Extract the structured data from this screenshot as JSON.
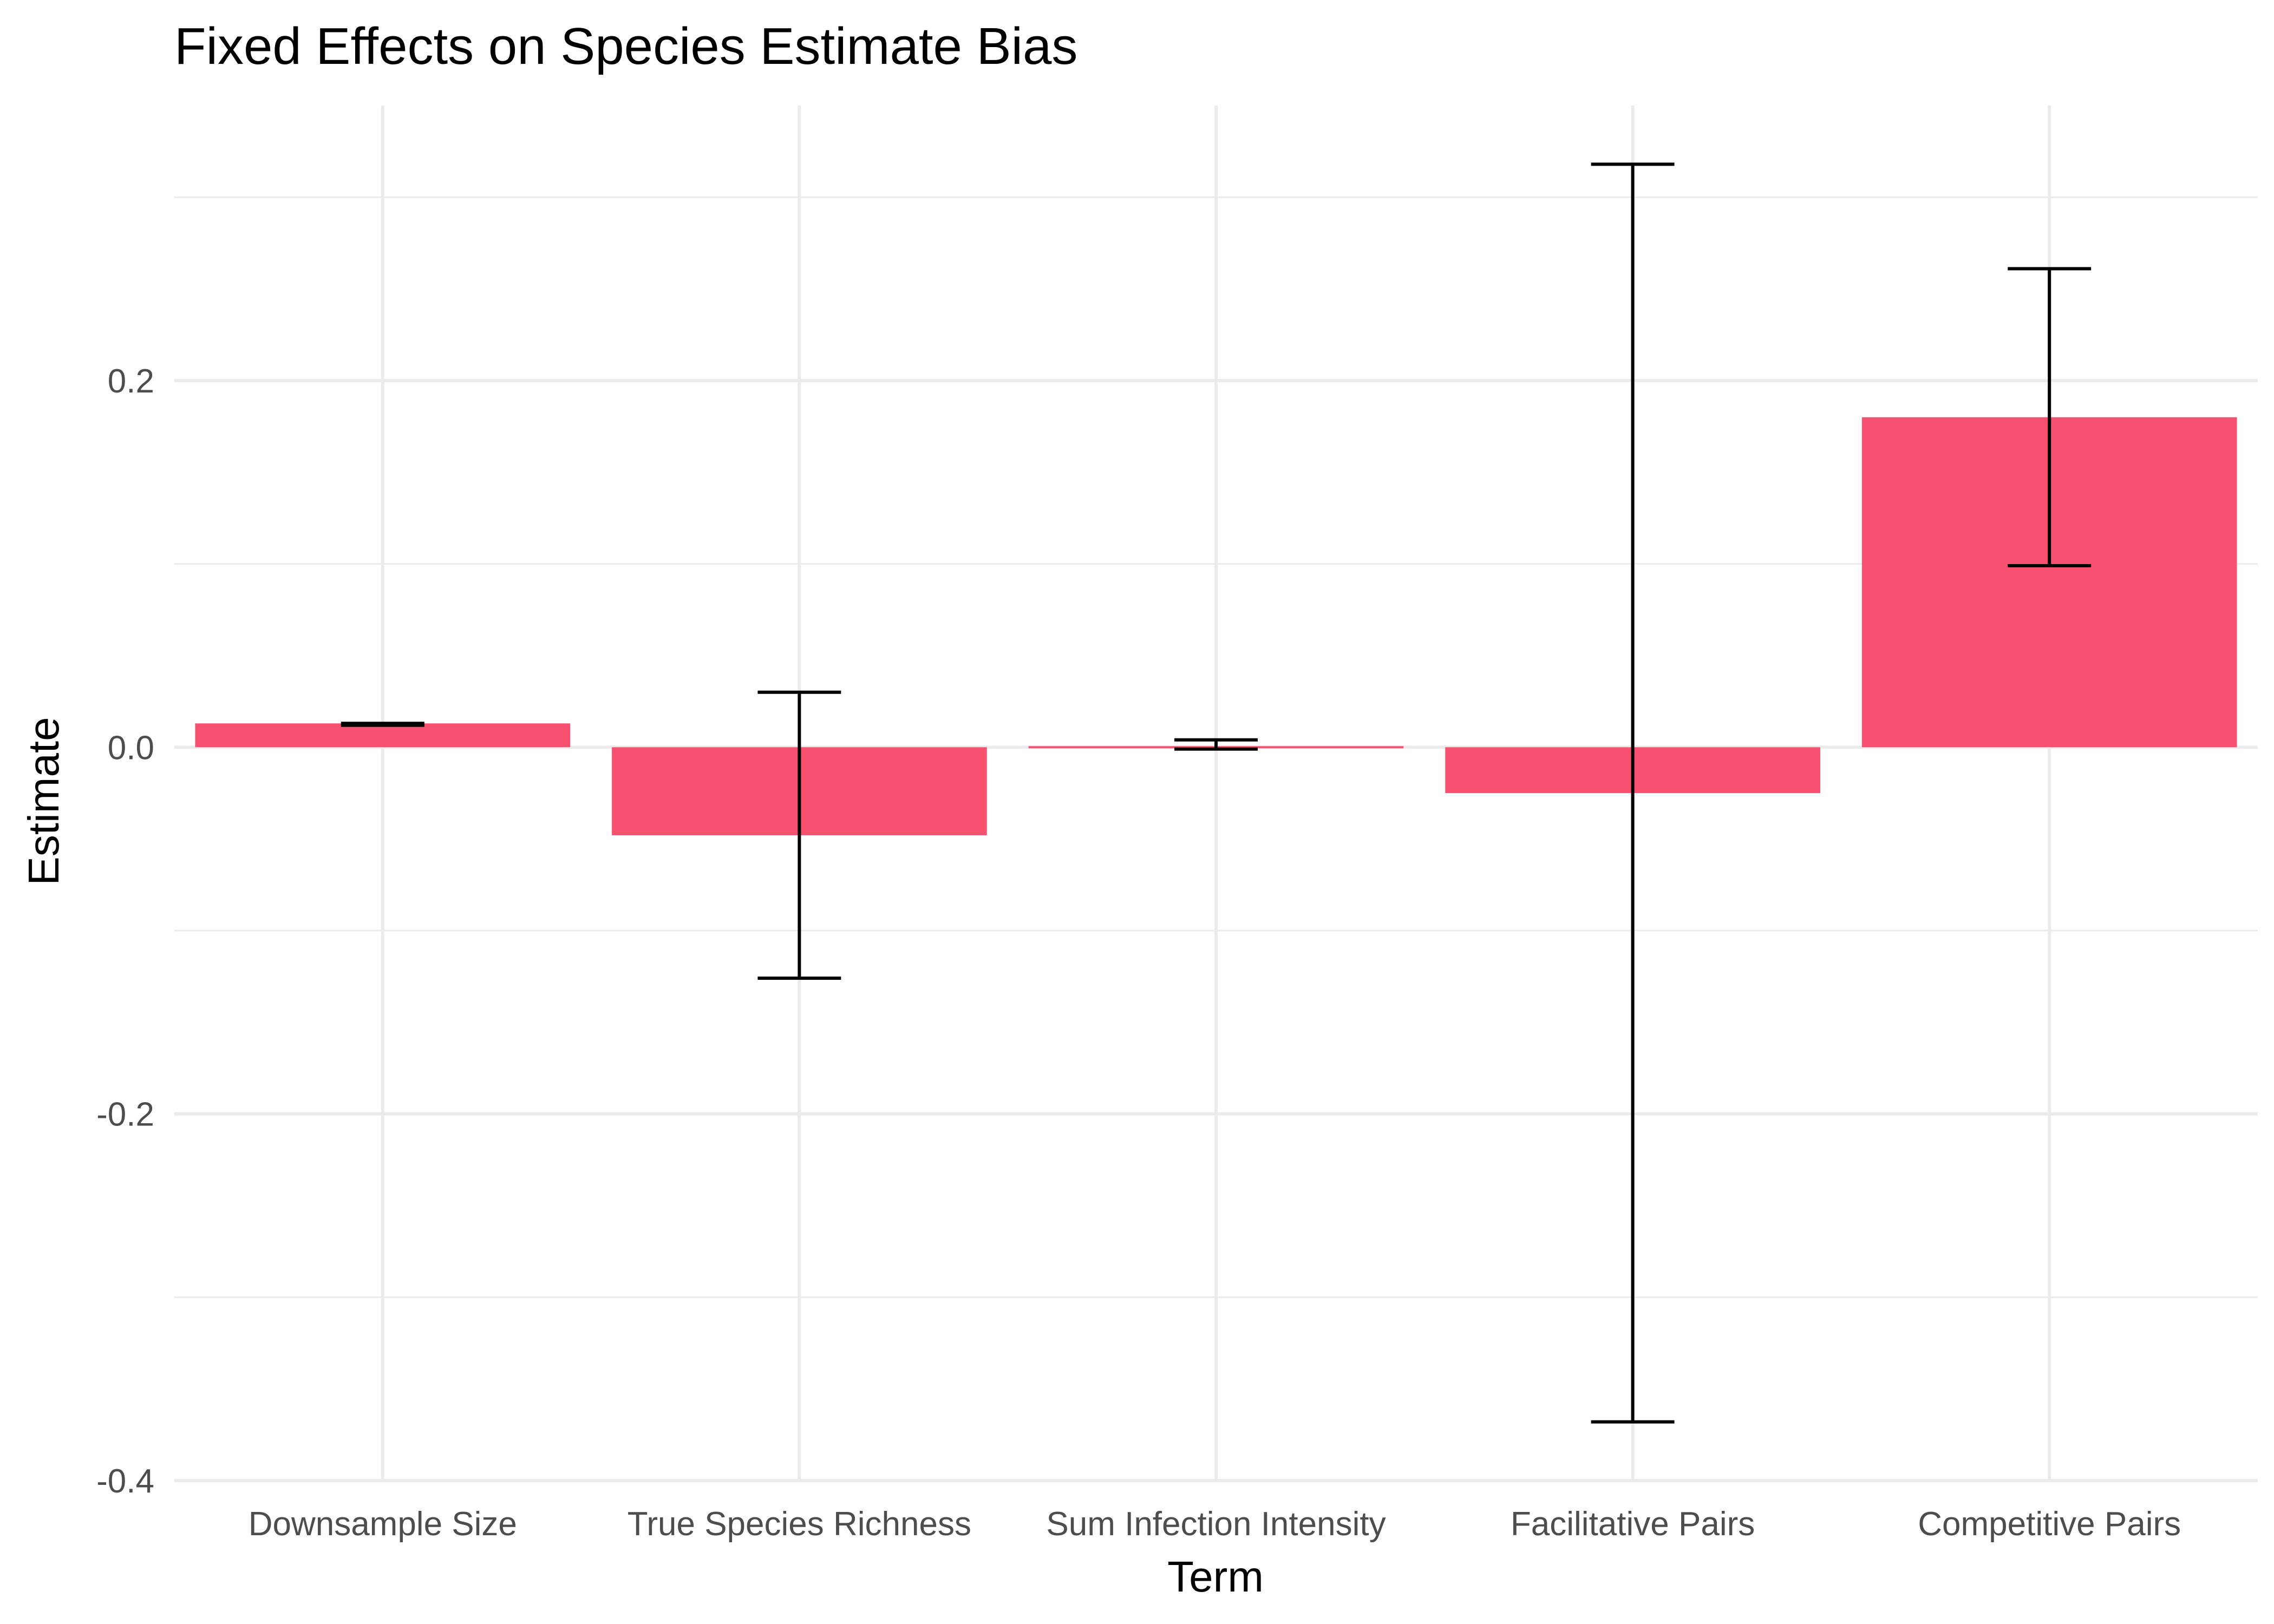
{
  "chart_data": {
    "type": "bar",
    "title": "Fixed Effects on Species Estimate Bias",
    "xlabel": "Term",
    "ylabel": "Estimate",
    "categories": [
      "Downsample Size",
      "True Species Richness",
      "Sum Infection Intensity",
      "Facilitative Pairs",
      "Competitive Pairs"
    ],
    "values": [
      0.013,
      -0.048,
      0.001,
      -0.025,
      0.18
    ],
    "error_lower": [
      0.012,
      -0.126,
      -0.001,
      -0.368,
      0.099
    ],
    "error_upper": [
      0.013,
      0.03,
      0.004,
      0.318,
      0.261
    ],
    "ylim": [
      -0.4,
      0.35
    ],
    "y_ticks": [
      -0.4,
      -0.2,
      0.0,
      0.2
    ],
    "y_tick_labels": [
      "-0.4",
      "-0.2",
      "0.0",
      "0.2"
    ],
    "grid": true,
    "bar_color": "#F8516F",
    "error_bar_color": "#000000",
    "grid_color": "#EBEBEB"
  }
}
